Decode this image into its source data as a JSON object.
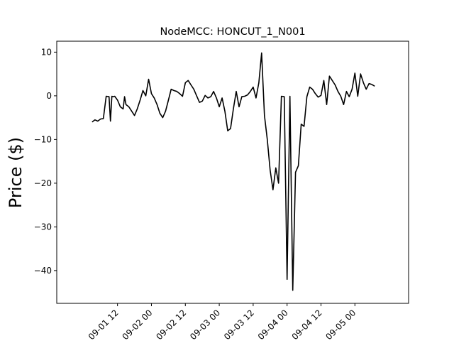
{
  "chart_data": {
    "type": "line",
    "title": "NodeMCC: HONCUT_1_N001",
    "xlabel": "",
    "ylabel": "Price ($)",
    "xlim": [
      "2016-08-31 14:30",
      "2016-09-05 19:00"
    ],
    "ylim": [
      -47.5,
      12.5
    ],
    "grid": false,
    "legend": "none",
    "x_ticks": [
      "09-01 12",
      "09-02 00",
      "09-02 12",
      "09-03 00",
      "09-03 12",
      "09-04 00",
      "09-04 12",
      "09-05 00"
    ],
    "y_ticks": [
      10,
      0,
      -10,
      -20,
      -30,
      -40
    ],
    "line_color": "#000000",
    "series": [
      {
        "x": [
          "2016-09-01 03:00",
          "2016-09-01 04:00",
          "2016-09-01 05:00",
          "2016-09-01 06:00",
          "2016-09-01 07:00",
          "2016-09-01 08:00",
          "2016-09-01 09:00",
          "2016-09-01 09:30",
          "2016-09-01 10:00",
          "2016-09-01 10:30",
          "2016-09-01 11:00",
          "2016-09-01 12:00",
          "2016-09-01 13:00",
          "2016-09-01 14:00",
          "2016-09-01 14:30",
          "2016-09-01 15:00",
          "2016-09-01 16:00",
          "2016-09-01 17:00",
          "2016-09-01 18:00",
          "2016-09-01 19:00",
          "2016-09-01 20:00",
          "2016-09-01 21:00",
          "2016-09-01 22:00",
          "2016-09-01 23:00",
          "2016-09-02 00:00",
          "2016-09-02 01:00",
          "2016-09-02 02:00",
          "2016-09-02 03:00",
          "2016-09-02 04:00",
          "2016-09-02 05:00",
          "2016-09-02 06:00",
          "2016-09-02 07:00",
          "2016-09-02 08:00",
          "2016-09-02 09:00",
          "2016-09-02 10:00",
          "2016-09-02 11:00",
          "2016-09-02 12:00",
          "2016-09-02 13:00",
          "2016-09-02 14:00",
          "2016-09-02 15:00",
          "2016-09-02 16:00",
          "2016-09-02 17:00",
          "2016-09-02 18:00",
          "2016-09-02 19:00",
          "2016-09-02 20:00",
          "2016-09-02 21:00",
          "2016-09-02 22:00",
          "2016-09-02 23:00",
          "2016-09-03 00:00",
          "2016-09-03 01:00",
          "2016-09-03 02:00",
          "2016-09-03 03:00",
          "2016-09-03 04:00",
          "2016-09-03 05:00",
          "2016-09-03 06:00",
          "2016-09-03 07:00",
          "2016-09-03 08:00",
          "2016-09-03 09:00",
          "2016-09-03 10:00",
          "2016-09-03 11:00",
          "2016-09-03 12:00",
          "2016-09-03 13:00",
          "2016-09-03 14:00",
          "2016-09-03 15:00",
          "2016-09-03 16:00",
          "2016-09-03 17:00",
          "2016-09-03 18:00",
          "2016-09-03 19:00",
          "2016-09-03 20:00",
          "2016-09-03 21:00",
          "2016-09-03 22:00",
          "2016-09-03 23:00",
          "2016-09-04 00:00",
          "2016-09-04 01:00",
          "2016-09-04 02:00",
          "2016-09-04 03:00",
          "2016-09-04 04:00",
          "2016-09-04 05:00",
          "2016-09-04 06:00",
          "2016-09-04 07:00",
          "2016-09-04 08:00",
          "2016-09-04 09:00",
          "2016-09-04 10:00",
          "2016-09-04 11:00",
          "2016-09-04 12:00",
          "2016-09-04 13:00",
          "2016-09-04 14:00",
          "2016-09-04 15:00",
          "2016-09-04 16:00",
          "2016-09-04 17:00",
          "2016-09-04 18:00",
          "2016-09-04 19:00",
          "2016-09-04 20:00",
          "2016-09-04 21:00",
          "2016-09-04 22:00",
          "2016-09-04 23:00",
          "2016-09-05 00:00",
          "2016-09-05 01:00",
          "2016-09-05 02:00",
          "2016-09-05 03:00",
          "2016-09-05 04:00",
          "2016-09-05 05:00",
          "2016-09-05 06:00",
          "2016-09-05 07:00"
        ],
        "values": [
          -6.0,
          -5.5,
          -5.8,
          -5.3,
          -5.2,
          -0.1,
          -0.2,
          -5.8,
          -0.1,
          -0.2,
          -0.1,
          -1.0,
          -2.5,
          -3.0,
          -0.2,
          -2.0,
          -2.5,
          -3.5,
          -4.5,
          -3.0,
          -1.0,
          1.2,
          0.0,
          3.8,
          0.5,
          -0.5,
          -2.0,
          -4.0,
          -5.0,
          -3.5,
          -1.0,
          1.5,
          1.2,
          1.0,
          0.5,
          -0.1,
          3.0,
          3.5,
          2.5,
          1.5,
          0.0,
          -1.5,
          -1.2,
          0.1,
          -0.5,
          -0.2,
          1.0,
          -0.5,
          -2.5,
          -0.5,
          -3.5,
          -8.0,
          -7.5,
          -3.0,
          1.0,
          -2.5,
          -0.2,
          -0.1,
          0.2,
          1.0,
          2.0,
          -0.5,
          3.0,
          9.8,
          -4.5,
          -10.0,
          -17.0,
          -21.5,
          -16.5,
          -20.0,
          -0.1,
          -0.2,
          -42.0,
          -0.1,
          -44.5,
          -17.5,
          -16.0,
          -6.5,
          -7.0,
          -0.2,
          2.0,
          1.5,
          0.5,
          -0.3,
          0.1,
          3.5,
          -2.0,
          4.5,
          3.5,
          2.5,
          1.0,
          -0.1,
          -2.0,
          1.0,
          -0.2,
          1.5,
          5.2,
          -0.1,
          5.0,
          3.0,
          1.5,
          2.8,
          2.6,
          2.2
        ]
      }
    ]
  }
}
